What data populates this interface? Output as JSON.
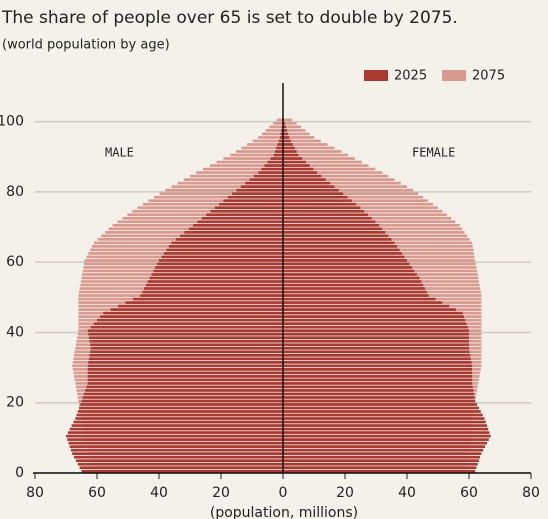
{
  "chart_data": {
    "type": "pyramid",
    "title": "The share of people over 65 is set to double by 2075.",
    "subtitle": "(world population by age)",
    "x_label": "(population, millions)",
    "left_label": "MALE",
    "right_label": "FEMALE",
    "ages": [
      0,
      1,
      2,
      3,
      4,
      5,
      6,
      7,
      8,
      9,
      10,
      11,
      12,
      13,
      14,
      15,
      16,
      17,
      18,
      19,
      20,
      21,
      22,
      23,
      24,
      25,
      26,
      27,
      28,
      29,
      30,
      31,
      32,
      33,
      34,
      35,
      36,
      37,
      38,
      39,
      40,
      41,
      42,
      43,
      44,
      45,
      46,
      47,
      48,
      49,
      50,
      51,
      52,
      53,
      54,
      55,
      56,
      57,
      58,
      59,
      60,
      61,
      62,
      63,
      64,
      65,
      66,
      67,
      68,
      69,
      70,
      71,
      72,
      73,
      74,
      75,
      76,
      77,
      78,
      79,
      80,
      81,
      82,
      83,
      84,
      85,
      86,
      87,
      88,
      89,
      90,
      91,
      92,
      93,
      94,
      95,
      96,
      97,
      98,
      99,
      100
    ],
    "series": [
      {
        "name": "2075",
        "color": "#d9998e",
        "male": [
          62,
          62.2,
          62.4,
          62.6,
          62.8,
          63,
          63.2,
          63.4,
          63.6,
          63.8,
          64,
          64.2,
          64.4,
          64.6,
          64.8,
          65,
          65.2,
          65.4,
          65.6,
          65.8,
          66,
          66.2,
          66.4,
          66.6,
          66.8,
          67,
          67.2,
          67.4,
          67.6,
          67.8,
          68,
          67.8,
          67.6,
          67.4,
          67.2,
          67,
          66.8,
          66.6,
          66.4,
          66.2,
          66,
          66,
          66,
          66,
          66,
          66,
          66,
          66,
          66,
          66,
          66,
          65.8,
          65.6,
          65.4,
          65.2,
          65,
          64.8,
          64.6,
          64.4,
          64.2,
          64,
          63.4,
          62.8,
          62.2,
          61.6,
          61,
          59.8,
          58.6,
          57.4,
          56.2,
          55,
          53.4,
          51.8,
          50.2,
          48.6,
          47,
          45.2,
          43.4,
          41.6,
          39.8,
          38,
          36,
          34,
          32,
          30,
          28,
          25.8,
          23.6,
          21.4,
          19.2,
          17,
          15.2,
          13.4,
          11.6,
          9.8,
          8,
          6.8,
          5.6,
          4.4,
          3.2,
          2
        ],
        "female": [
          59,
          59.2,
          59.4,
          59.6,
          59.8,
          60,
          60.2,
          60.4,
          60.6,
          60.8,
          61,
          61,
          61,
          61,
          61,
          61,
          61.2,
          61.4,
          61.6,
          61.8,
          62,
          62.2,
          62.4,
          62.6,
          62.8,
          63,
          63.2,
          63.4,
          63.6,
          63.8,
          64,
          64,
          64,
          64,
          64,
          64,
          64,
          64,
          64,
          64,
          64,
          64,
          64,
          64,
          64,
          64,
          64,
          64,
          64,
          64,
          64,
          63.8,
          63.6,
          63.4,
          63.2,
          63,
          62.8,
          62.6,
          62.4,
          62.2,
          62,
          61.8,
          61.6,
          61.4,
          61.2,
          61,
          60.2,
          59.4,
          58.6,
          57.8,
          57,
          55.6,
          54.2,
          52.8,
          51.4,
          50,
          48.4,
          46.8,
          45.2,
          43.6,
          42,
          40,
          38,
          36,
          34,
          32,
          29.8,
          27.6,
          25.4,
          23.2,
          21,
          18.8,
          16.6,
          14.4,
          12.2,
          10,
          8.6,
          7.2,
          5.8,
          4.4,
          3
        ]
      },
      {
        "name": "2025",
        "color": "#a93a32",
        "male": [
          65,
          65.6,
          66.2,
          66.8,
          67.4,
          68,
          68.4,
          68.8,
          69.2,
          69.6,
          70,
          69.4,
          68.8,
          68.2,
          67.6,
          67,
          66.6,
          66.2,
          65.8,
          65.4,
          65,
          64.6,
          64.2,
          63.8,
          63.4,
          63,
          63,
          63,
          63,
          63,
          63,
          62.8,
          62.6,
          62.4,
          62.2,
          62,
          62.2,
          62.4,
          62.6,
          62.8,
          63,
          62,
          61,
          60,
          59,
          58,
          55.6,
          53.2,
          50.8,
          48.4,
          46,
          45.4,
          44.8,
          44.2,
          43.6,
          43,
          42.4,
          41.8,
          41.2,
          40.6,
          40,
          39.2,
          38.4,
          37.6,
          36.8,
          36,
          34.6,
          33.2,
          31.8,
          30.4,
          29,
          27.6,
          26.2,
          24.8,
          23.4,
          22,
          20.6,
          19.2,
          17.8,
          16.4,
          15,
          13.6,
          12.2,
          10.8,
          9.4,
          8,
          7,
          6,
          5,
          4,
          3,
          2.6,
          2.2,
          1.8,
          1.4,
          1,
          0.8,
          0.6,
          0.4,
          0.2,
          0.1
        ],
        "female": [
          62,
          62.4,
          62.8,
          63.2,
          63.6,
          64,
          64.6,
          65.2,
          65.8,
          66.4,
          67,
          66.6,
          66.2,
          65.8,
          65.4,
          65,
          64.4,
          63.8,
          63.2,
          62.6,
          62,
          61.8,
          61.6,
          61.4,
          61.2,
          61,
          61,
          61,
          61,
          61,
          61,
          60.8,
          60.6,
          60.4,
          60.2,
          60,
          60,
          60,
          60,
          60,
          60,
          59.6,
          59.2,
          58.8,
          58.4,
          58,
          55.8,
          53.6,
          51.4,
          49.2,
          47,
          46.4,
          45.8,
          45.2,
          44.6,
          44,
          43.2,
          42.4,
          41.6,
          40.8,
          40,
          39.2,
          38.4,
          37.6,
          36.8,
          36,
          35,
          34,
          33,
          32,
          31,
          29.8,
          28.6,
          27.4,
          26.2,
          25,
          23.6,
          22.2,
          20.8,
          19.4,
          18,
          16.6,
          15.2,
          13.8,
          12.4,
          11,
          9.8,
          8.6,
          7.4,
          6.2,
          5,
          4.4,
          3.8,
          3.2,
          2.6,
          2,
          1.7,
          1.3,
          1,
          0.6,
          0.3
        ]
      }
    ],
    "xlim": [
      -80,
      80
    ],
    "xticks": [
      {
        "value": -80,
        "label": "80"
      },
      {
        "value": -60,
        "label": "60"
      },
      {
        "value": -40,
        "label": "40"
      },
      {
        "value": -20,
        "label": "20"
      },
      0,
      20,
      40,
      60,
      80
    ],
    "ylim": [
      0,
      111
    ],
    "yticks": [
      0,
      20,
      40,
      60,
      80,
      100
    ],
    "grid": true
  }
}
